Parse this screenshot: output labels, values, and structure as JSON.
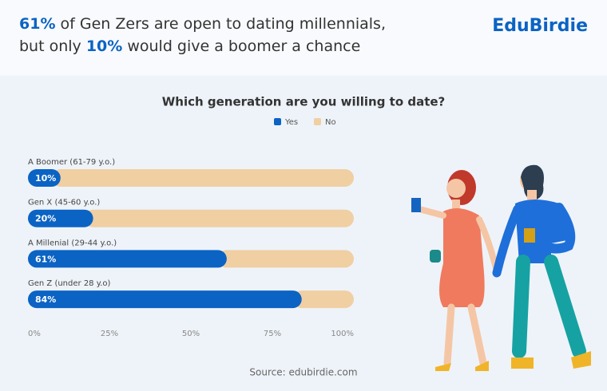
{
  "header": {
    "headline": [
      [
        {
          "text": "61%",
          "highlight": true
        },
        {
          "text": " of Gen Zers are open to dating millennials,",
          "highlight": false
        }
      ],
      [
        {
          "text": "but only ",
          "highlight": false
        },
        {
          "text": "10%",
          "highlight": true
        },
        {
          "text": " would give a boomer a chance",
          "highlight": false
        }
      ]
    ],
    "logo": "EduBirdie"
  },
  "chart_data": {
    "type": "stacked_bar",
    "orientation": "horizontal",
    "title": "Which generation are you willing to date?",
    "categories": [
      "A Boomer (61-79 y.o.)",
      "Gen X (45-60 y.o.)",
      "A Millenial (29-44 y.o.)",
      "Gen Z (under 28 y.o)"
    ],
    "series": [
      {
        "name": "Yes",
        "color": "#0b63c4",
        "values": [
          10,
          20,
          61,
          84
        ],
        "value_labels": [
          "10%",
          "20%",
          "61%",
          "84%"
        ]
      },
      {
        "name": "No",
        "color": "#f0cfa3",
        "values": [
          90,
          80,
          39,
          16
        ]
      }
    ],
    "xlim": [
      0,
      100
    ],
    "xticks": [
      {
        "value": 0,
        "label": "0%"
      },
      {
        "value": 25,
        "label": "25%"
      },
      {
        "value": 50,
        "label": "50%"
      },
      {
        "value": 75,
        "label": "75%"
      },
      {
        "value": 100,
        "label": "100%"
      }
    ],
    "legend": "top"
  },
  "footer": {
    "source": "Source: edubirdie.com"
  }
}
